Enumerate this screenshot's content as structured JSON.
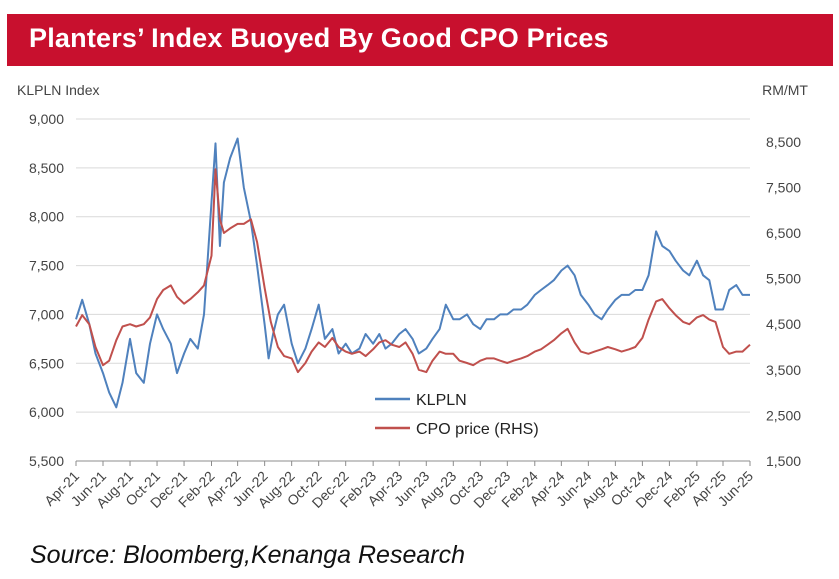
{
  "title": "Planters’ Index Buoyed By Good CPO Prices",
  "source": "Source: Bloomberg,Kenanga Research",
  "colors": {
    "banner": "#c8102e",
    "klpln": "#4f81bd",
    "cpo": "#c0504d"
  },
  "chart_data": {
    "type": "line",
    "ylabel": "KLPLN Index",
    "y2label": "RM/MT",
    "ylim": [
      5500,
      9000
    ],
    "y2lim": [
      1500,
      9000
    ],
    "yticks": [
      "9,000",
      "8,500",
      "8,000",
      "7,500",
      "7,000",
      "6,500",
      "6,000",
      "5,500"
    ],
    "y2ticks": [
      "8,500",
      "7,500",
      "6,500",
      "5,500",
      "4,500",
      "3,500",
      "2,500",
      "1,500"
    ],
    "xticks": [
      "Apr-21",
      "Jun-21",
      "Aug-21",
      "Oct-21",
      "Dec-21",
      "Feb-22",
      "Apr-22",
      "Jun-22",
      "Aug-22",
      "Oct-22",
      "Dec-22",
      "Feb-23",
      "Apr-23",
      "Jun-23",
      "Aug-23",
      "Oct-23",
      "Dec-23",
      "Feb-24",
      "Apr-24",
      "Jun-24",
      "Aug-24",
      "Oct-24",
      "Dec-24",
      "Feb-25",
      "Apr-25",
      "Jun-25"
    ],
    "legend": [
      "KLPLN",
      "CPO price (RHS)"
    ],
    "series": [
      {
        "name": "KLPLN",
        "axis": "left",
        "points": [
          [
            "2021-04-01",
            6950
          ],
          [
            "2021-04-15",
            7150
          ],
          [
            "2021-05-01",
            6900
          ],
          [
            "2021-05-15",
            6600
          ],
          [
            "2021-06-01",
            6400
          ],
          [
            "2021-06-15",
            6200
          ],
          [
            "2021-07-01",
            6050
          ],
          [
            "2021-07-15",
            6300
          ],
          [
            "2021-08-01",
            6750
          ],
          [
            "2021-08-15",
            6400
          ],
          [
            "2021-09-01",
            6300
          ],
          [
            "2021-09-15",
            6700
          ],
          [
            "2021-10-01",
            7000
          ],
          [
            "2021-10-15",
            6850
          ],
          [
            "2021-11-01",
            6700
          ],
          [
            "2021-11-15",
            6400
          ],
          [
            "2021-12-01",
            6600
          ],
          [
            "2021-12-15",
            6750
          ],
          [
            "2022-01-01",
            6650
          ],
          [
            "2022-01-15",
            7000
          ],
          [
            "2022-02-01",
            8150
          ],
          [
            "2022-02-10",
            8750
          ],
          [
            "2022-02-20",
            7700
          ],
          [
            "2022-03-01",
            8350
          ],
          [
            "2022-03-15",
            8600
          ],
          [
            "2022-04-01",
            8800
          ],
          [
            "2022-04-15",
            8300
          ],
          [
            "2022-05-01",
            7950
          ],
          [
            "2022-05-15",
            7500
          ],
          [
            "2022-06-01",
            6900
          ],
          [
            "2022-06-10",
            6550
          ],
          [
            "2022-06-20",
            6800
          ],
          [
            "2022-07-01",
            7000
          ],
          [
            "2022-07-15",
            7100
          ],
          [
            "2022-08-01",
            6700
          ],
          [
            "2022-08-15",
            6500
          ],
          [
            "2022-09-01",
            6650
          ],
          [
            "2022-09-15",
            6850
          ],
          [
            "2022-10-01",
            7100
          ],
          [
            "2022-10-15",
            6750
          ],
          [
            "2022-11-01",
            6850
          ],
          [
            "2022-11-15",
            6600
          ],
          [
            "2022-12-01",
            6700
          ],
          [
            "2022-12-15",
            6600
          ],
          [
            "2023-01-01",
            6650
          ],
          [
            "2023-01-15",
            6800
          ],
          [
            "2023-02-01",
            6700
          ],
          [
            "2023-02-15",
            6800
          ],
          [
            "2023-03-01",
            6650
          ],
          [
            "2023-03-15",
            6700
          ],
          [
            "2023-04-01",
            6800
          ],
          [
            "2023-04-15",
            6850
          ],
          [
            "2023-05-01",
            6750
          ],
          [
            "2023-05-15",
            6600
          ],
          [
            "2023-06-01",
            6650
          ],
          [
            "2023-06-15",
            6750
          ],
          [
            "2023-07-01",
            6850
          ],
          [
            "2023-07-15",
            7100
          ],
          [
            "2023-08-01",
            6950
          ],
          [
            "2023-08-15",
            6950
          ],
          [
            "2023-09-01",
            7000
          ],
          [
            "2023-09-15",
            6900
          ],
          [
            "2023-10-01",
            6850
          ],
          [
            "2023-10-15",
            6950
          ],
          [
            "2023-11-01",
            6950
          ],
          [
            "2023-11-15",
            7000
          ],
          [
            "2023-12-01",
            7000
          ],
          [
            "2023-12-15",
            7050
          ],
          [
            "2024-01-01",
            7050
          ],
          [
            "2024-01-15",
            7100
          ],
          [
            "2024-02-01",
            7200
          ],
          [
            "2024-02-15",
            7250
          ],
          [
            "2024-03-01",
            7300
          ],
          [
            "2024-03-15",
            7350
          ],
          [
            "2024-04-01",
            7450
          ],
          [
            "2024-04-15",
            7500
          ],
          [
            "2024-05-01",
            7400
          ],
          [
            "2024-05-15",
            7200
          ],
          [
            "2024-06-01",
            7100
          ],
          [
            "2024-06-15",
            7000
          ],
          [
            "2024-07-01",
            6950
          ],
          [
            "2024-07-15",
            7050
          ],
          [
            "2024-08-01",
            7150
          ],
          [
            "2024-08-15",
            7200
          ],
          [
            "2024-09-01",
            7200
          ],
          [
            "2024-09-15",
            7250
          ],
          [
            "2024-10-01",
            7250
          ],
          [
            "2024-10-15",
            7400
          ],
          [
            "2024-11-01",
            7850
          ],
          [
            "2024-11-15",
            7700
          ],
          [
            "2024-12-01",
            7650
          ],
          [
            "2024-12-15",
            7550
          ],
          [
            "2025-01-01",
            7450
          ],
          [
            "2025-01-15",
            7400
          ],
          [
            "2025-02-01",
            7550
          ],
          [
            "2025-02-15",
            7400
          ],
          [
            "2025-03-01",
            7350
          ],
          [
            "2025-03-15",
            7050
          ],
          [
            "2025-04-01",
            7050
          ],
          [
            "2025-04-15",
            7250
          ],
          [
            "2025-05-01",
            7300
          ],
          [
            "2025-05-15",
            7200
          ],
          [
            "2025-06-01",
            7200
          ]
        ]
      },
      {
        "name": "CPO price (RHS)",
        "axis": "right",
        "points": [
          [
            "2021-04-01",
            4450
          ],
          [
            "2021-04-15",
            4700
          ],
          [
            "2021-05-01",
            4500
          ],
          [
            "2021-05-15",
            4000
          ],
          [
            "2021-06-01",
            3600
          ],
          [
            "2021-06-15",
            3700
          ],
          [
            "2021-07-01",
            4150
          ],
          [
            "2021-07-15",
            4450
          ],
          [
            "2021-08-01",
            4500
          ],
          [
            "2021-08-15",
            4450
          ],
          [
            "2021-09-01",
            4500
          ],
          [
            "2021-09-15",
            4650
          ],
          [
            "2021-10-01",
            5050
          ],
          [
            "2021-10-15",
            5250
          ],
          [
            "2021-11-01",
            5350
          ],
          [
            "2021-11-15",
            5100
          ],
          [
            "2021-12-01",
            4950
          ],
          [
            "2021-12-15",
            5050
          ],
          [
            "2022-01-01",
            5200
          ],
          [
            "2022-01-15",
            5350
          ],
          [
            "2022-02-01",
            6000
          ],
          [
            "2022-02-10",
            7900
          ],
          [
            "2022-02-20",
            6800
          ],
          [
            "2022-03-01",
            6500
          ],
          [
            "2022-03-15",
            6600
          ],
          [
            "2022-04-01",
            6700
          ],
          [
            "2022-04-15",
            6700
          ],
          [
            "2022-05-01",
            6800
          ],
          [
            "2022-05-15",
            6300
          ],
          [
            "2022-06-01",
            5300
          ],
          [
            "2022-06-15",
            4550
          ],
          [
            "2022-07-01",
            4000
          ],
          [
            "2022-07-15",
            3800
          ],
          [
            "2022-08-01",
            3750
          ],
          [
            "2022-08-15",
            3450
          ],
          [
            "2022-09-01",
            3650
          ],
          [
            "2022-09-15",
            3900
          ],
          [
            "2022-10-01",
            4100
          ],
          [
            "2022-10-15",
            4000
          ],
          [
            "2022-11-01",
            4200
          ],
          [
            "2022-11-15",
            4000
          ],
          [
            "2022-12-01",
            3900
          ],
          [
            "2022-12-15",
            3850
          ],
          [
            "2023-01-01",
            3900
          ],
          [
            "2023-01-15",
            3800
          ],
          [
            "2023-02-01",
            3950
          ],
          [
            "2023-02-15",
            4100
          ],
          [
            "2023-03-01",
            4150
          ],
          [
            "2023-03-15",
            4050
          ],
          [
            "2023-04-01",
            4000
          ],
          [
            "2023-04-15",
            4100
          ],
          [
            "2023-05-01",
            3850
          ],
          [
            "2023-05-15",
            3500
          ],
          [
            "2023-06-01",
            3450
          ],
          [
            "2023-06-15",
            3700
          ],
          [
            "2023-07-01",
            3900
          ],
          [
            "2023-07-15",
            3850
          ],
          [
            "2023-08-01",
            3850
          ],
          [
            "2023-08-15",
            3700
          ],
          [
            "2023-09-01",
            3650
          ],
          [
            "2023-09-15",
            3600
          ],
          [
            "2023-10-01",
            3700
          ],
          [
            "2023-10-15",
            3750
          ],
          [
            "2023-11-01",
            3750
          ],
          [
            "2023-11-15",
            3700
          ],
          [
            "2023-12-01",
            3650
          ],
          [
            "2023-12-15",
            3700
          ],
          [
            "2024-01-01",
            3750
          ],
          [
            "2024-01-15",
            3800
          ],
          [
            "2024-02-01",
            3900
          ],
          [
            "2024-02-15",
            3950
          ],
          [
            "2024-03-01",
            4050
          ],
          [
            "2024-03-15",
            4150
          ],
          [
            "2024-04-01",
            4300
          ],
          [
            "2024-04-15",
            4400
          ],
          [
            "2024-05-01",
            4100
          ],
          [
            "2024-05-15",
            3900
          ],
          [
            "2024-06-01",
            3850
          ],
          [
            "2024-06-15",
            3900
          ],
          [
            "2024-07-01",
            3950
          ],
          [
            "2024-07-15",
            4000
          ],
          [
            "2024-08-01",
            3950
          ],
          [
            "2024-08-15",
            3900
          ],
          [
            "2024-09-01",
            3950
          ],
          [
            "2024-09-15",
            4000
          ],
          [
            "2024-10-01",
            4200
          ],
          [
            "2024-10-15",
            4600
          ],
          [
            "2024-11-01",
            5000
          ],
          [
            "2024-11-15",
            5050
          ],
          [
            "2024-12-01",
            4850
          ],
          [
            "2024-12-15",
            4700
          ],
          [
            "2025-01-01",
            4550
          ],
          [
            "2025-01-15",
            4500
          ],
          [
            "2025-02-01",
            4650
          ],
          [
            "2025-02-15",
            4700
          ],
          [
            "2025-03-01",
            4600
          ],
          [
            "2025-03-15",
            4550
          ],
          [
            "2025-04-01",
            4000
          ],
          [
            "2025-04-15",
            3850
          ],
          [
            "2025-05-01",
            3900
          ],
          [
            "2025-05-15",
            3900
          ],
          [
            "2025-06-01",
            4050
          ]
        ]
      }
    ]
  }
}
